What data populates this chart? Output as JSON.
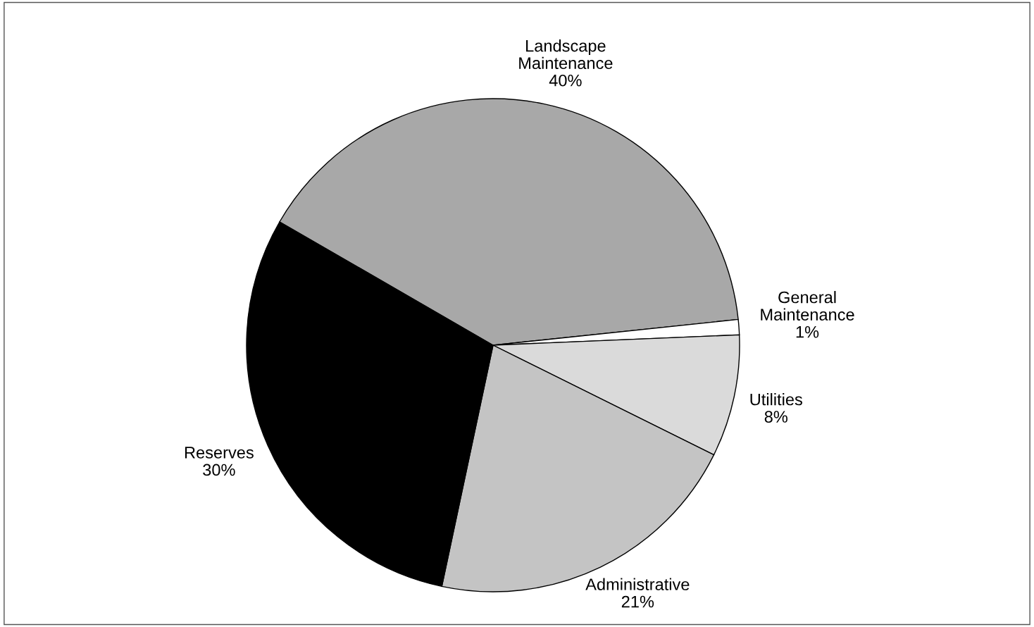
{
  "chart_data": {
    "type": "pie",
    "categories": [
      "Landscape Maintenance",
      "General Maintenance",
      "Utilities",
      "Administrative",
      "Reserves"
    ],
    "values": [
      40,
      1,
      8,
      21,
      30
    ],
    "value_labels": [
      "40%",
      "1%",
      "8%",
      "21%",
      "30%"
    ],
    "colors": [
      "#a8a8a8",
      "#ffffff",
      "#dadada",
      "#c4c4c4",
      "#000000"
    ],
    "legend": false
  }
}
